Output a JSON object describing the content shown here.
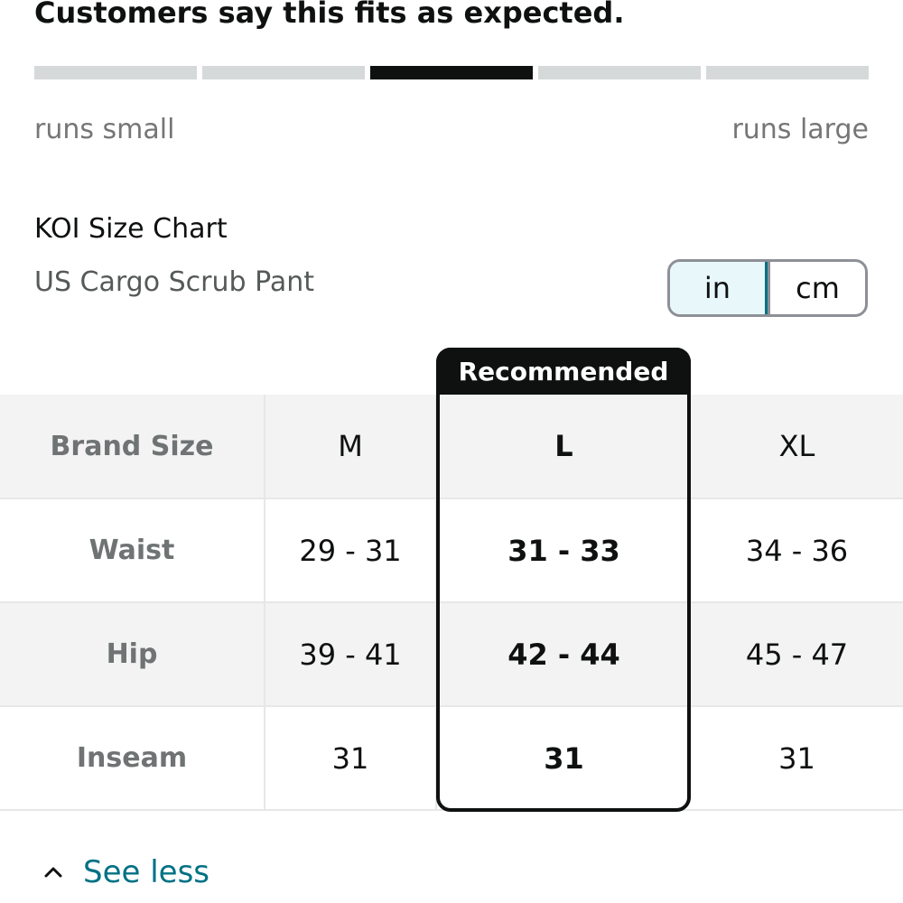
{
  "fit_summary": {
    "heading": "Customers say this fits as expected.",
    "scale_segments": 5,
    "active_segment": 3,
    "left_label": "runs small",
    "right_label": "runs large"
  },
  "size_chart": {
    "title": "KOI Size Chart",
    "subtitle": "US Cargo Scrub Pant",
    "units": [
      {
        "label": "in",
        "selected": true
      },
      {
        "label": "cm",
        "selected": false
      }
    ],
    "recommended_label": "Recommended",
    "recommended_size": "L",
    "header": {
      "label": "Brand Size",
      "sizes": [
        "M",
        "L",
        "XL"
      ]
    },
    "rows": [
      {
        "label": "Waist",
        "values": [
          "29 - 31",
          "31 - 33",
          "34 - 36"
        ]
      },
      {
        "label": "Hip",
        "values": [
          "39 - 41",
          "42 - 44",
          "45 - 47"
        ]
      },
      {
        "label": "Inseam",
        "values": [
          "31",
          "31",
          "31"
        ]
      }
    ]
  },
  "see_less": {
    "label": "See less",
    "icon": "chevron-up-icon"
  },
  "colors": {
    "link": "#007185",
    "selected_unit_bg": "#e8f8fa",
    "active_segment": "#0f1111",
    "inactive_segment": "#d5d9d9"
  }
}
